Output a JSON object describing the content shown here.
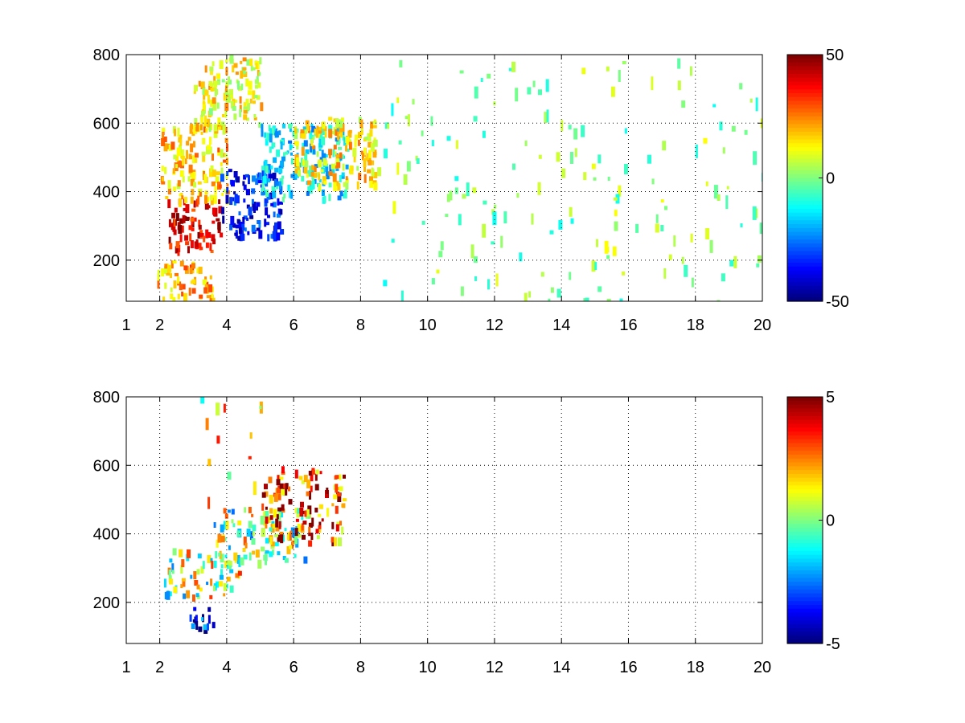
{
  "chart_data": [
    {
      "type": "heatmap",
      "title": "",
      "xlabel": "",
      "ylabel": "",
      "xlim": [
        1,
        20
      ],
      "ylim": [
        80,
        800
      ],
      "xticks": [
        1,
        2,
        4,
        6,
        8,
        10,
        12,
        14,
        16,
        18,
        20
      ],
      "xtick_labels": [
        "1",
        "2",
        "4",
        "6",
        "8",
        "10",
        "12",
        "14",
        "16",
        "18",
        "20"
      ],
      "yticks": [
        200,
        400,
        600,
        800
      ],
      "ytick_labels": [
        "200",
        "400",
        "600",
        "800"
      ],
      "grid": true,
      "colormap": "jet",
      "clim": [
        -50,
        50
      ],
      "colorbar_ticks": [
        50,
        0,
        -50
      ],
      "colorbar_labels": [
        "50",
        "0",
        "-50"
      ],
      "regions": [
        {
          "desc": "positive band",
          "x": [
            2.2,
            3.8
          ],
          "y": [
            230,
            380
          ],
          "value": 40
        },
        {
          "desc": "moderate positive",
          "x": [
            2.0,
            4.0
          ],
          "y": [
            380,
            600
          ],
          "value": 18
        },
        {
          "desc": "upper positive",
          "x": [
            3.0,
            5.0
          ],
          "y": [
            600,
            800
          ],
          "value": 12
        },
        {
          "desc": "negative core",
          "x": [
            3.8,
            5.6
          ],
          "y": [
            270,
            470
          ],
          "value": -35
        },
        {
          "desc": "negative spread",
          "x": [
            5.0,
            7.6
          ],
          "y": [
            380,
            600
          ],
          "value": -15
        },
        {
          "desc": "positive right",
          "x": [
            6.0,
            8.5
          ],
          "y": [
            420,
            620
          ],
          "value": 15
        },
        {
          "desc": "lower positive",
          "x": [
            1.9,
            3.6
          ],
          "y": [
            90,
            200
          ],
          "value": 20
        },
        {
          "desc": "sparse noise",
          "x": [
            8.5,
            20
          ],
          "y": [
            80,
            800
          ],
          "value": 0
        }
      ]
    },
    {
      "type": "heatmap",
      "title": "",
      "xlabel": "",
      "ylabel": "",
      "xlim": [
        1,
        20
      ],
      "ylim": [
        80,
        800
      ],
      "xticks": [
        1,
        2,
        4,
        6,
        8,
        10,
        12,
        14,
        16,
        18,
        20
      ],
      "xtick_labels": [
        "1",
        "2",
        "4",
        "6",
        "8",
        "10",
        "12",
        "14",
        "16",
        "18",
        "20"
      ],
      "yticks": [
        200,
        400,
        600,
        800
      ],
      "ytick_labels": [
        "200",
        "400",
        "600",
        "800"
      ],
      "grid": true,
      "colormap": "jet",
      "clim": [
        -5,
        5
      ],
      "colorbar_ticks": [
        5,
        0,
        -5
      ],
      "colorbar_labels": [
        "5",
        "0",
        "-5"
      ],
      "regions": [
        {
          "desc": "lower band mixed",
          "x": [
            2.1,
            4.5
          ],
          "y": [
            220,
            360
          ],
          "value": 0.5
        },
        {
          "desc": "middle band",
          "x": [
            3.5,
            6.5
          ],
          "y": [
            320,
            480
          ],
          "value": 0
        },
        {
          "desc": "positive patch",
          "x": [
            5.0,
            7.5
          ],
          "y": [
            380,
            600
          ],
          "value": 3.5
        },
        {
          "desc": "upper scattered",
          "x": [
            3.0,
            5.0
          ],
          "y": [
            500,
            800
          ],
          "value": 1.5
        },
        {
          "desc": "negative patch",
          "x": [
            2.5,
            3.6
          ],
          "y": [
            120,
            190
          ],
          "value": -4.5
        }
      ]
    }
  ]
}
